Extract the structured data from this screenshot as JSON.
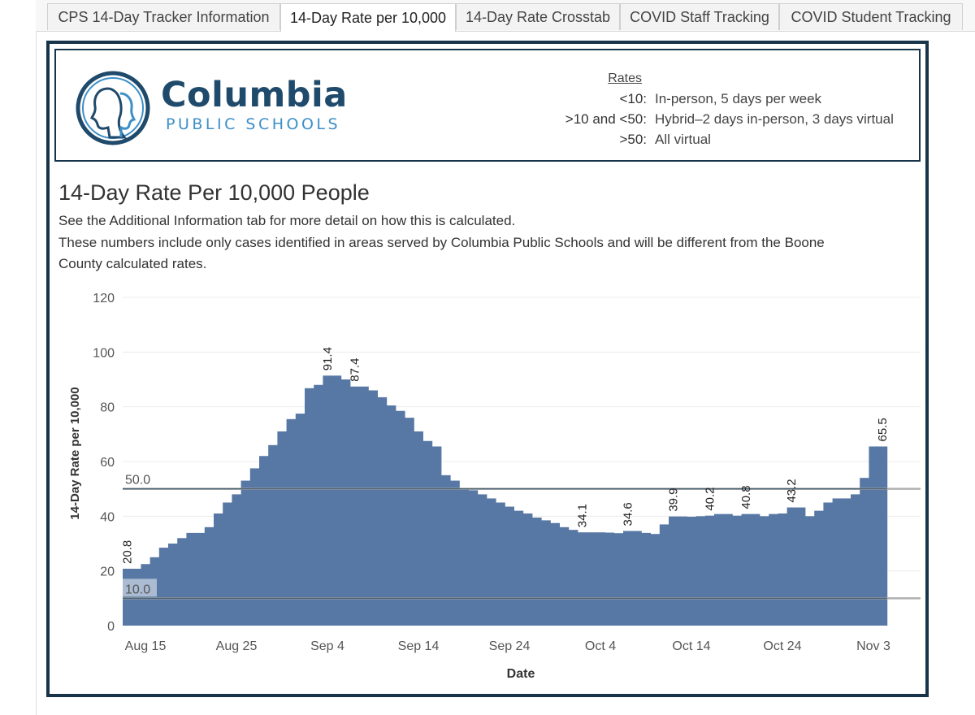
{
  "tabs": [
    {
      "label": "CPS 14-Day Tracker Information",
      "active": false
    },
    {
      "label": "14-Day Rate per 10,000",
      "active": true
    },
    {
      "label": "14-Day Rate Crosstab",
      "active": false
    },
    {
      "label": "COVID Staff Tracking",
      "active": false
    },
    {
      "label": "COVID Student Tracking",
      "active": false
    }
  ],
  "header": {
    "logo_word": "Columbia",
    "logo_sub": "PUBLIC SCHOOLS",
    "rates_title": "Rates",
    "rates": [
      {
        "key": "<10:",
        "desc": "In-person, 5 days per week"
      },
      {
        "key": ">10 and <50:",
        "desc": "Hybrid–2 days in-person, 3 days virtual"
      },
      {
        "key": ">50:",
        "desc": "All virtual"
      }
    ]
  },
  "colors": {
    "bar": "#5778a4",
    "frame": "#17344a",
    "ref_line": "#b0b0b0",
    "logo_dark": "#1f4a6b",
    "logo_light": "#3d8fc7"
  },
  "chart_data": {
    "type": "bar",
    "title": "14-Day Rate Per 10,000 People",
    "subtitle_lines": [
      "See the Additional Information tab for more detail on how this is calculated.",
      "These numbers include only cases identified in areas served by Columbia Public Schools and will be different from the Boone",
      "County calculated rates."
    ],
    "xlabel": "Date",
    "ylabel": "14-Day Rate per 10,000",
    "ylim": [
      0,
      120
    ],
    "yticks": [
      0,
      20,
      40,
      60,
      80,
      100,
      120
    ],
    "x_start": "Aug 13",
    "x_end": "Nov 6",
    "xticks": [
      {
        "label": "Aug 15",
        "day": 2
      },
      {
        "label": "Aug 25",
        "day": 12
      },
      {
        "label": "Sep 4",
        "day": 22
      },
      {
        "label": "Sep 14",
        "day": 32
      },
      {
        "label": "Sep 24",
        "day": 42
      },
      {
        "label": "Oct 4",
        "day": 52
      },
      {
        "label": "Oct 14",
        "day": 62
      },
      {
        "label": "Oct 24",
        "day": 72
      },
      {
        "label": "Nov 3",
        "day": 82
      }
    ],
    "values": [
      20.8,
      20.8,
      22.5,
      25,
      28.5,
      30,
      32,
      33.9,
      33.9,
      36,
      41,
      45,
      48,
      53,
      57.5,
      62,
      66,
      71,
      75.5,
      77.5,
      86.8,
      88,
      91.4,
      91.4,
      90,
      87.4,
      87.4,
      86,
      83.5,
      80.5,
      78.5,
      76,
      71,
      67.5,
      65.5,
      55,
      53,
      50,
      49.5,
      48,
      46.5,
      45,
      43.5,
      42,
      41,
      39.5,
      38.5,
      37.5,
      36,
      35,
      34.1,
      34.1,
      34.1,
      34,
      33.8,
      34.6,
      34.6,
      33.9,
      33.5,
      37,
      39.9,
      39.9,
      39.8,
      40,
      40.2,
      40.8,
      40.8,
      40.2,
      40.8,
      40.8,
      40,
      40.8,
      41,
      43.2,
      43.2,
      40,
      42,
      45,
      46.5,
      46.5,
      48,
      54,
      65.5,
      65.5
    ],
    "data_labels": [
      {
        "index": 0,
        "text": "20.8"
      },
      {
        "index": 22,
        "text": "91.4"
      },
      {
        "index": 25,
        "text": "87.4"
      },
      {
        "index": 50,
        "text": "34.1"
      },
      {
        "index": 55,
        "text": "34.6"
      },
      {
        "index": 60,
        "text": "39.9"
      },
      {
        "index": 64,
        "text": "40.2"
      },
      {
        "index": 68,
        "text": "40.8"
      },
      {
        "index": 73,
        "text": "43.2"
      },
      {
        "index": 83,
        "text": "65.5"
      }
    ],
    "reference_lines": [
      {
        "value": 50,
        "label": "50.0"
      },
      {
        "value": 10,
        "label": "10.0"
      }
    ],
    "grid": true,
    "legend": "none"
  }
}
